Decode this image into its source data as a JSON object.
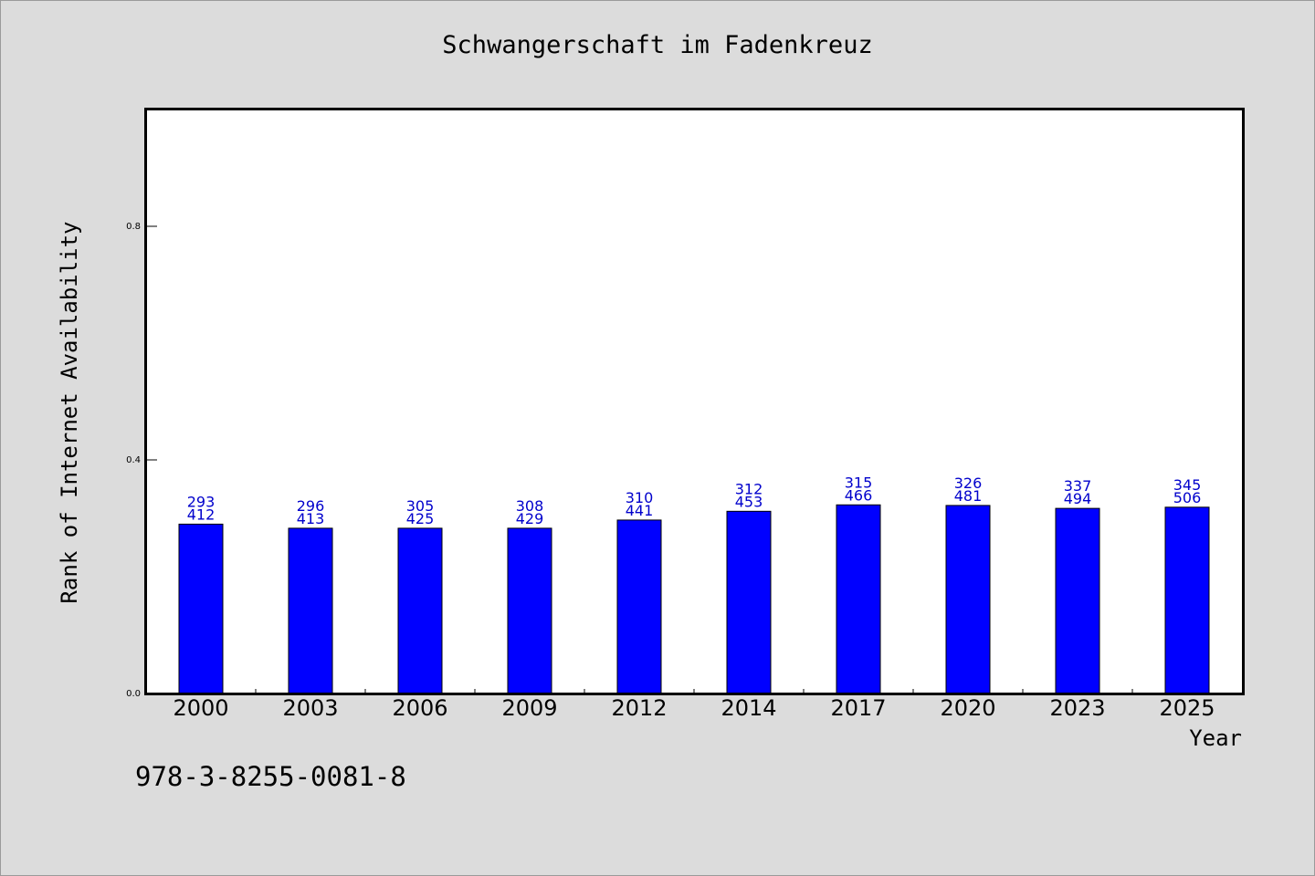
{
  "chart_data": {
    "type": "bar",
    "title": "Schwangerschaft im Fadenkreuz",
    "xlabel": "Year",
    "ylabel": "Rank of Internet Availability",
    "categories": [
      "2000",
      "2003",
      "2006",
      "2009",
      "2012",
      "2014",
      "2017",
      "2020",
      "2023",
      "2025"
    ],
    "values": [
      0.29,
      0.283,
      0.283,
      0.283,
      0.297,
      0.312,
      0.323,
      0.322,
      0.317,
      0.319
    ],
    "label_top": [
      "293",
      "296",
      "305",
      "308",
      "310",
      "312",
      "315",
      "326",
      "337",
      "345"
    ],
    "label_bottom": [
      "412",
      "413",
      "425",
      "429",
      "441",
      "453",
      "466",
      "481",
      "494",
      "506"
    ],
    "ylim": [
      0,
      1.0
    ],
    "yticks": [
      0.0,
      0.4,
      0.8
    ],
    "ytick_labels": [
      "0.0",
      "0.4",
      "0.8"
    ],
    "bar_color": "#0000ff",
    "label_color": "#0000cc",
    "grid": false
  },
  "footer": {
    "code": "978-3-8255-0081-8"
  }
}
